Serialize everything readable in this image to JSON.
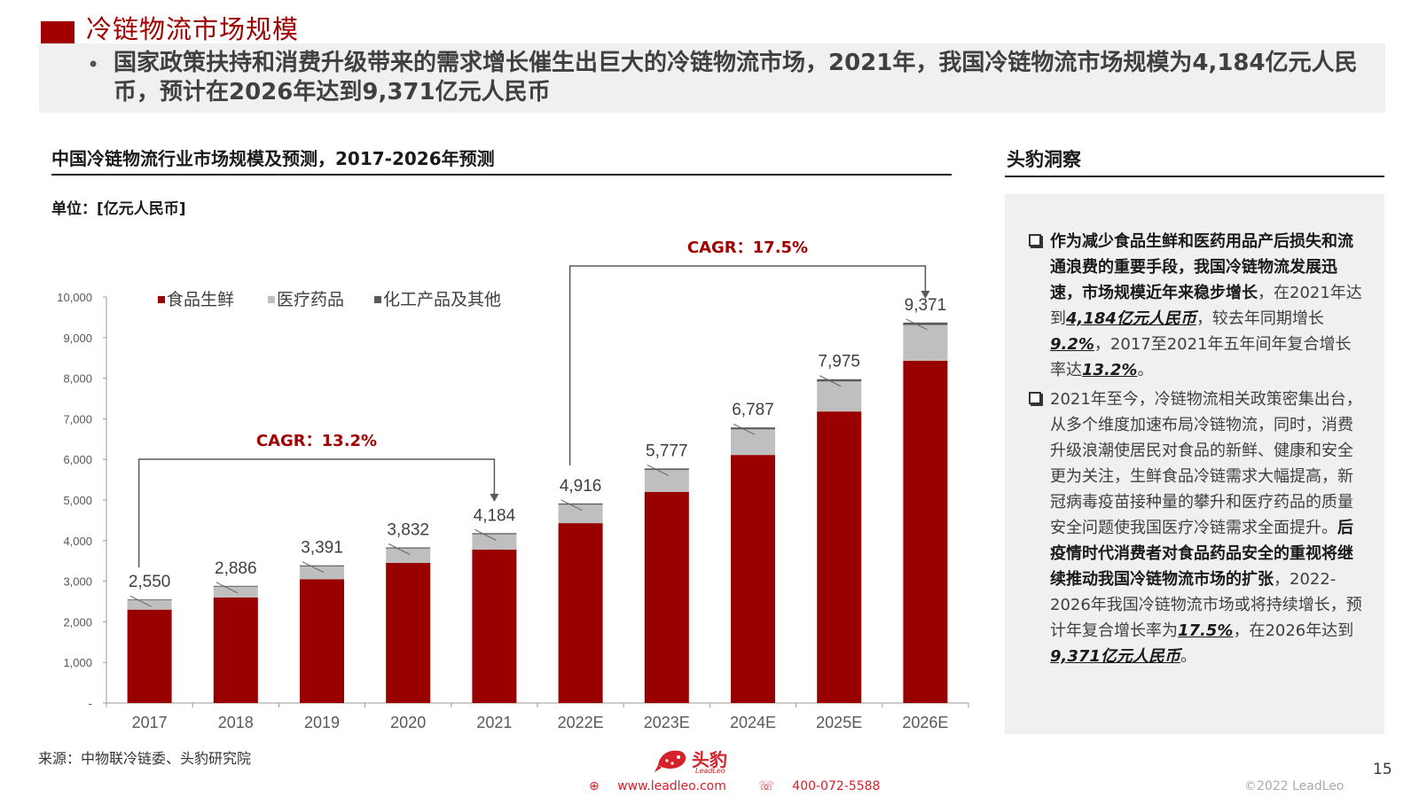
{
  "header": {
    "title": "冷链物流市场规模",
    "summary": "国家政策扶持和消费升级带来的需求增长催生出巨大的冷链物流市场，2021年，我国冷链物流市场规模为4,184亿元人民币，预计在2026年达到9,371亿元人民币"
  },
  "chart_data": {
    "type": "bar",
    "stacked": true,
    "title": "中国冷链物流行业市场规模及预测，2017-2026年预测",
    "unit": "单位：[亿元人民币]",
    "categories": [
      "2017",
      "2018",
      "2019",
      "2020",
      "2021",
      "2022E",
      "2023E",
      "2024E",
      "2025E",
      "2026E"
    ],
    "totals": [
      2550,
      2886,
      3391,
      3832,
      4184,
      4916,
      5777,
      6787,
      7975,
      9371
    ],
    "total_labels": [
      "2,550",
      "2,886",
      "3,391",
      "3,832",
      "4,184",
      "4,916",
      "5,777",
      "6,787",
      "7,975",
      "9,371"
    ],
    "series": [
      {
        "name": "食品生鲜",
        "color": "#990000",
        "values": [
          2300,
          2600,
          3050,
          3450,
          3780,
          4430,
          5200,
          6110,
          7180,
          8430
        ]
      },
      {
        "name": "医疗药品",
        "color": "#bfbfbf",
        "values": [
          230,
          265,
          315,
          355,
          375,
          455,
          540,
          630,
          740,
          880
        ]
      },
      {
        "name": "化工产品及其他",
        "color": "#595959",
        "values": [
          20,
          21,
          26,
          27,
          29,
          31,
          37,
          47,
          55,
          61
        ]
      }
    ],
    "ylim": [
      0,
      10000
    ],
    "yticks": [
      0,
      1000,
      2000,
      3000,
      4000,
      5000,
      6000,
      7000,
      8000,
      9000,
      10000
    ],
    "ytick_labels": [
      "-",
      "1,000",
      "2,000",
      "3,000",
      "4,000",
      "5,000",
      "6,000",
      "7,000",
      "8,000",
      "9,000",
      "10,000"
    ],
    "legend_position": "top-left",
    "grid": false,
    "annotations": [
      {
        "label": "CAGR：13.2%",
        "from": "2017",
        "to": "2021"
      },
      {
        "label": "CAGR：17.5%",
        "from": "2022E",
        "to": "2026E"
      }
    ]
  },
  "insight": {
    "title": "头豹洞察",
    "p1": {
      "bold": "作为减少食品生鲜和医药用品产后损失和流通浪费的重要手段，我国冷链物流发展迅速，市场规模近年来稳步增长",
      "t1": "，在2021年达到",
      "v1": "4,184亿元人民币",
      "t2": "，较去年同期增长",
      "v2": "9.2%",
      "t3": "，2017至2021年五年间年复合增长率达",
      "v3": "13.2%",
      "t4": "。"
    },
    "p2": {
      "t1": "2021年至今，冷链物流相关政策密集出台，从多个维度加速布局冷链物流，同时，消费升级浪潮使居民对食品的新鲜、健康和安全更为关注，生鲜食品冷链需求大幅提高，新冠病毒疫苗接种量的攀升和医疗药品的质量安全问题使我国医疗冷链需求全面提升。",
      "bold": "后疫情时代消费者对食品药品安全的重视将继续推动我国冷链物流市场的扩张",
      "t2": "，2022-2026年我国冷链物流市场或将持续增长，预计年复合增长率为",
      "v1": "17.5%",
      "t3": "，在2026年达到",
      "v2": "9,371亿元人民币",
      "t4": "。"
    }
  },
  "footer": {
    "source": "来源：中物联冷链委、头豹研究院",
    "logo_cn": "头豹",
    "logo_en": "LeadLeo",
    "website": "www.leadleo.com",
    "phone": "400-072-5588",
    "page_number": "15",
    "copyright": "©2022 LeadLeo"
  }
}
